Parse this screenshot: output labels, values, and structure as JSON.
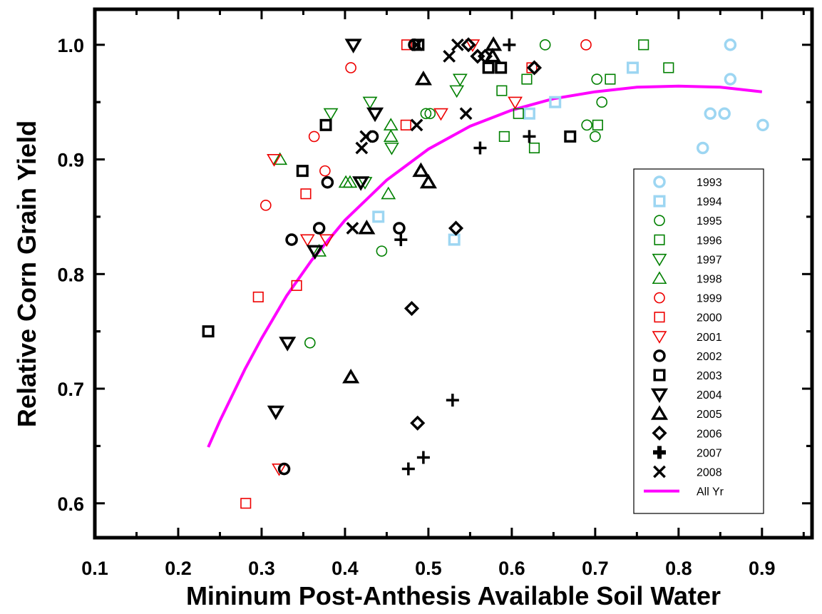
{
  "chart_data": {
    "type": "scatter",
    "title": "",
    "xlabel": "Mininum Post-Anthesis Available Soil Water",
    "ylabel": "Relative Corn Grain Yield",
    "xlim": [
      0.1,
      0.96
    ],
    "ylim": [
      0.57,
      1.031
    ],
    "xticks": [
      "0.1",
      "0.2",
      "0.3",
      "0.4",
      "0.5",
      "0.6",
      "0.7",
      "0.8",
      "0.9"
    ],
    "yticks": [
      "0.6",
      "0.7",
      "0.8",
      "0.9",
      "1.0"
    ],
    "grid": false,
    "legend_position": "right",
    "series": [
      {
        "name": "1993",
        "marker": "circle",
        "color": "#9dd6f2",
        "bold": true,
        "points": [
          [
            0.862,
            1.0
          ],
          [
            0.862,
            0.97
          ],
          [
            0.838,
            0.94
          ],
          [
            0.855,
            0.94
          ],
          [
            0.901,
            0.93
          ],
          [
            0.829,
            0.91
          ]
        ]
      },
      {
        "name": "1994",
        "marker": "square",
        "color": "#9dd6f2",
        "bold": true,
        "points": [
          [
            0.745,
            0.98
          ],
          [
            0.652,
            0.95
          ],
          [
            0.621,
            0.94
          ],
          [
            0.44,
            0.85
          ],
          [
            0.531,
            0.83
          ]
        ]
      },
      {
        "name": "1995",
        "marker": "circle",
        "color": "#008000",
        "bold": false,
        "points": [
          [
            0.64,
            1.0
          ],
          [
            0.702,
            0.97
          ],
          [
            0.708,
            0.95
          ],
          [
            0.497,
            0.94
          ],
          [
            0.502,
            0.94
          ],
          [
            0.69,
            0.93
          ],
          [
            0.7,
            0.92
          ],
          [
            0.444,
            0.82
          ],
          [
            0.358,
            0.74
          ]
        ]
      },
      {
        "name": "1996",
        "marker": "square",
        "color": "#008000",
        "bold": false,
        "points": [
          [
            0.758,
            1.0
          ],
          [
            0.788,
            0.98
          ],
          [
            0.718,
            0.97
          ],
          [
            0.618,
            0.97
          ],
          [
            0.588,
            0.96
          ],
          [
            0.608,
            0.94
          ],
          [
            0.703,
            0.93
          ],
          [
            0.591,
            0.92
          ],
          [
            0.627,
            0.91
          ]
        ]
      },
      {
        "name": "1997",
        "marker": "tri_down",
        "color": "#008000",
        "bold": false,
        "points": [
          [
            0.538,
            0.97
          ],
          [
            0.534,
            0.96
          ],
          [
            0.43,
            0.95
          ],
          [
            0.383,
            0.94
          ],
          [
            0.456,
            0.91
          ],
          [
            0.424,
            0.88
          ]
        ]
      },
      {
        "name": "1998",
        "marker": "tri_up",
        "color": "#008000",
        "bold": false,
        "points": [
          [
            0.322,
            0.9
          ],
          [
            0.401,
            0.88
          ],
          [
            0.406,
            0.88
          ],
          [
            0.455,
            0.93
          ],
          [
            0.455,
            0.92
          ],
          [
            0.452,
            0.87
          ],
          [
            0.369,
            0.82
          ]
        ]
      },
      {
        "name": "1999",
        "marker": "circle",
        "color": "#ee0000",
        "bold": false,
        "points": [
          [
            0.689,
            1.0
          ],
          [
            0.407,
            0.98
          ],
          [
            0.363,
            0.92
          ],
          [
            0.376,
            0.89
          ],
          [
            0.305,
            0.86
          ]
        ]
      },
      {
        "name": "2000",
        "marker": "square",
        "color": "#ee0000",
        "bold": false,
        "points": [
          [
            0.474,
            1.0
          ],
          [
            0.624,
            0.98
          ],
          [
            0.473,
            0.93
          ],
          [
            0.353,
            0.87
          ],
          [
            0.296,
            0.78
          ],
          [
            0.342,
            0.79
          ],
          [
            0.281,
            0.6
          ]
        ]
      },
      {
        "name": "2001",
        "marker": "tri_down",
        "color": "#ee0000",
        "bold": false,
        "points": [
          [
            0.553,
            1.0
          ],
          [
            0.515,
            0.94
          ],
          [
            0.604,
            0.95
          ],
          [
            0.315,
            0.9
          ],
          [
            0.355,
            0.83
          ],
          [
            0.378,
            0.83
          ],
          [
            0.321,
            0.63
          ]
        ]
      },
      {
        "name": "2002",
        "marker": "circle",
        "color": "#000000",
        "bold": true,
        "points": [
          [
            0.483,
            1.0
          ],
          [
            0.433,
            0.92
          ],
          [
            0.379,
            0.88
          ],
          [
            0.369,
            0.84
          ],
          [
            0.336,
            0.83
          ],
          [
            0.465,
            0.84
          ],
          [
            0.327,
            0.63
          ]
        ]
      },
      {
        "name": "2003",
        "marker": "square",
        "color": "#000000",
        "bold": true,
        "points": [
          [
            0.488,
            1.0
          ],
          [
            0.572,
            0.98
          ],
          [
            0.587,
            0.98
          ],
          [
            0.377,
            0.93
          ],
          [
            0.67,
            0.92
          ],
          [
            0.349,
            0.89
          ],
          [
            0.236,
            0.75
          ]
        ]
      },
      {
        "name": "2004",
        "marker": "tri_down",
        "color": "#000000",
        "bold": true,
        "points": [
          [
            0.41,
            1.0
          ],
          [
            0.436,
            0.94
          ],
          [
            0.419,
            0.88
          ],
          [
            0.364,
            0.82
          ],
          [
            0.331,
            0.74
          ],
          [
            0.317,
            0.68
          ]
        ]
      },
      {
        "name": "2005",
        "marker": "tri_up",
        "color": "#000000",
        "bold": true,
        "points": [
          [
            0.578,
            1.0
          ],
          [
            0.577,
            0.99
          ],
          [
            0.494,
            0.97
          ],
          [
            0.491,
            0.89
          ],
          [
            0.5,
            0.88
          ],
          [
            0.426,
            0.84
          ],
          [
            0.407,
            0.71
          ]
        ]
      },
      {
        "name": "2006",
        "marker": "diamond",
        "color": "#000000",
        "bold": true,
        "points": [
          [
            0.548,
            1.0
          ],
          [
            0.559,
            0.99
          ],
          [
            0.568,
            0.99
          ],
          [
            0.627,
            0.98
          ],
          [
            0.533,
            0.84
          ],
          [
            0.48,
            0.77
          ],
          [
            0.487,
            0.67
          ]
        ]
      },
      {
        "name": "2007",
        "marker": "plus",
        "color": "#000000",
        "bold": true,
        "points": [
          [
            0.597,
            1.0
          ],
          [
            0.562,
            0.91
          ],
          [
            0.621,
            0.92
          ],
          [
            0.467,
            0.83
          ],
          [
            0.529,
            0.69
          ],
          [
            0.494,
            0.64
          ],
          [
            0.476,
            0.63
          ]
        ]
      },
      {
        "name": "2008",
        "marker": "x",
        "color": "#000000",
        "bold": true,
        "points": [
          [
            0.486,
            1.0
          ],
          [
            0.535,
            1.0
          ],
          [
            0.525,
            0.99
          ],
          [
            0.545,
            0.94
          ],
          [
            0.486,
            0.93
          ],
          [
            0.425,
            0.92
          ],
          [
            0.42,
            0.91
          ],
          [
            0.409,
            0.84
          ]
        ]
      }
    ],
    "fit_line": {
      "name": "All Yr",
      "color": "#ff00ff",
      "points": [
        [
          0.236,
          0.649
        ],
        [
          0.25,
          0.672
        ],
        [
          0.28,
          0.717
        ],
        [
          0.3,
          0.744
        ],
        [
          0.33,
          0.781
        ],
        [
          0.36,
          0.812
        ],
        [
          0.4,
          0.847
        ],
        [
          0.45,
          0.882
        ],
        [
          0.5,
          0.909
        ],
        [
          0.55,
          0.929
        ],
        [
          0.6,
          0.943
        ],
        [
          0.65,
          0.953
        ],
        [
          0.7,
          0.959
        ],
        [
          0.75,
          0.963
        ],
        [
          0.8,
          0.964
        ],
        [
          0.85,
          0.963
        ],
        [
          0.9,
          0.959
        ]
      ]
    }
  }
}
